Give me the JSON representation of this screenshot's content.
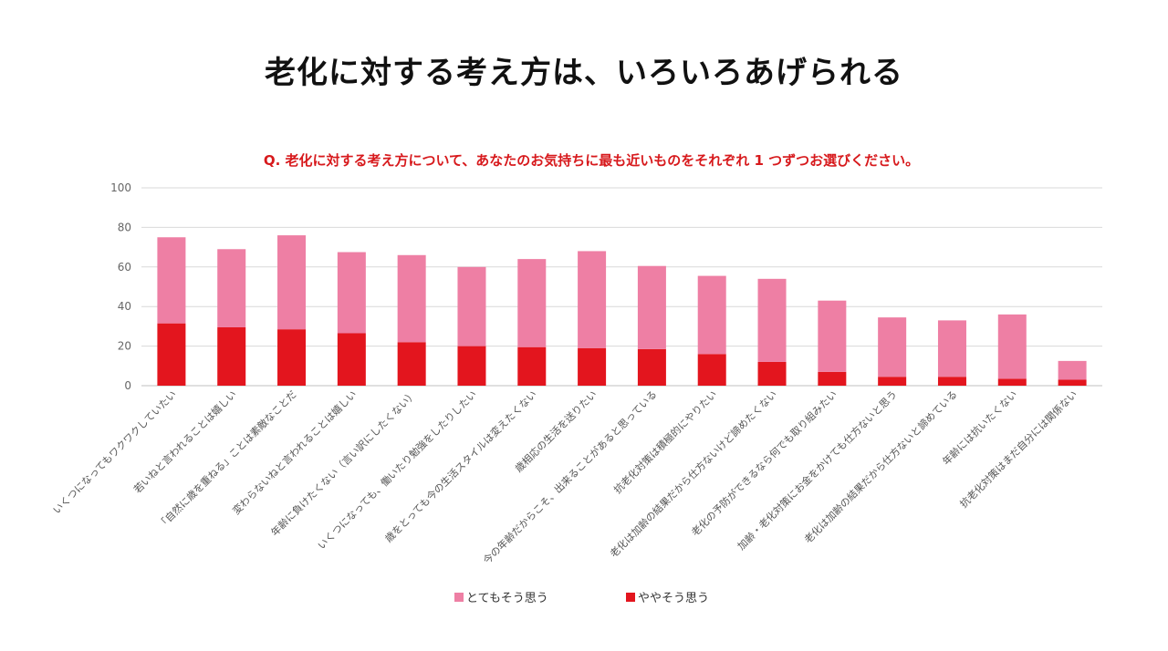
{
  "title": "老化に対する考え方は、いろいろあげられる",
  "subtitle": "Q. 老化に対する考え方について、あなたのお気持ちに最も近いものをそれぞれ 1 つずつお選びください。",
  "chart_data": {
    "type": "bar",
    "stacked": true,
    "title": "",
    "xlabel": "",
    "ylabel": "",
    "ylim": [
      0,
      100
    ],
    "yticks": [
      0,
      20,
      40,
      60,
      80,
      100
    ],
    "grid": true,
    "legend_position": "bottom",
    "categories": [
      "いくつになってもワクワクしていたい",
      "若いねと言われることは嬉しい",
      "「自然に歳を重ねる」ことは素敵なことだ",
      "変わらないねと言われることは嬉しい",
      "年齢に負けたくない（言い訳にしたくない）",
      "いくつになっても、働いたり勉強をしたりしたい",
      "歳をとっても今の生活スタイルは変えたくない",
      "歳相応の生活を送りたい",
      "今の年齢だからこそ、出来ることがあると思っている",
      "抗老化対策は積極的にやりたい",
      "老化は加齢の結果だから仕方ないけど諦めたくない",
      "老化の予防ができるなら何でも取り組みたい",
      "加齢・老化対策にお金をかけても仕方ないと思う",
      "老化は加齢の結果だから仕方ないと諦めている",
      "年齢には抗いたくない",
      "抗老化対策はまだ自分には関係ない"
    ],
    "series": [
      {
        "name": "ややそう思う",
        "color": "#e3151e",
        "values": [
          31.5,
          29.5,
          28.5,
          26.5,
          22,
          20,
          19.5,
          19,
          18.5,
          16,
          12,
          7,
          4.5,
          4.5,
          3.5,
          3
        ]
      },
      {
        "name": "とてもそう思う",
        "color": "#ee7fa4",
        "values": [
          43.5,
          39.5,
          47.5,
          41,
          44,
          40,
          44.5,
          49,
          42,
          39.5,
          42,
          36,
          30,
          28.5,
          32.5,
          9.5
        ]
      }
    ]
  }
}
